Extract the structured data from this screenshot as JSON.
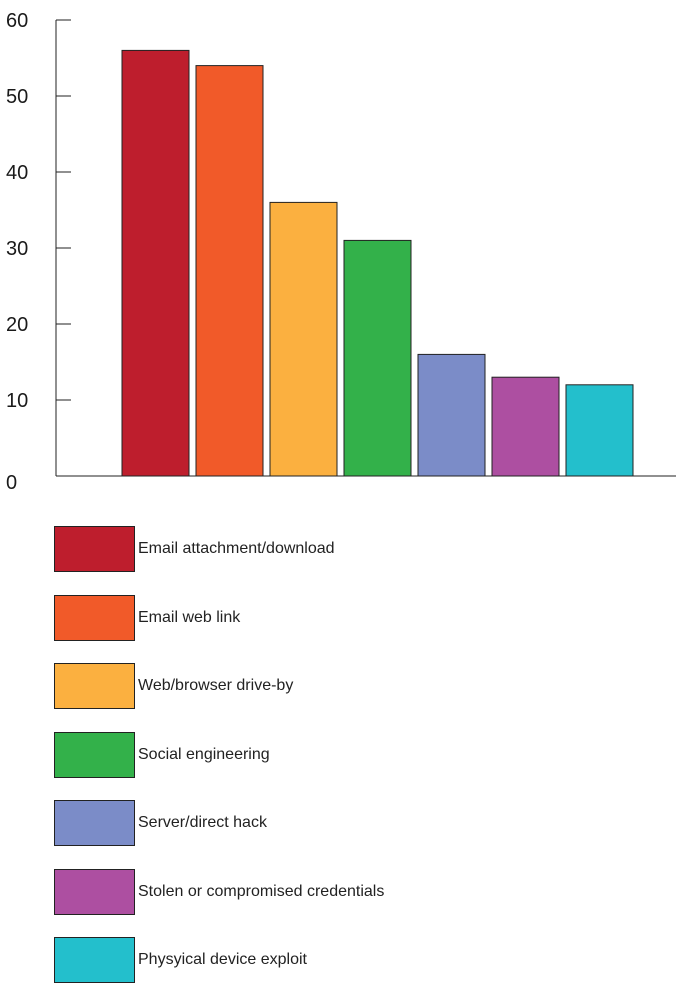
{
  "chart_data": {
    "type": "bar",
    "categories": [
      "Email attachment/download",
      "Email web link",
      "Web/browser drive-by",
      "Social engineering",
      "Server/direct hack",
      "Stolen or compromised credentials",
      "Physyical device exploit"
    ],
    "values": [
      56,
      54,
      36,
      31,
      16,
      13,
      12
    ],
    "colors": [
      "#be1e2d",
      "#f15a29",
      "#fbb040",
      "#33b14a",
      "#7b8cc8",
      "#ad4fa1",
      "#23bfcc"
    ],
    "ylim": [
      0,
      60
    ],
    "yticks": [
      0,
      10,
      20,
      30,
      40,
      50,
      60
    ],
    "title": "",
    "xlabel": "",
    "ylabel": "",
    "grid": false,
    "legend_position": "bottom"
  }
}
